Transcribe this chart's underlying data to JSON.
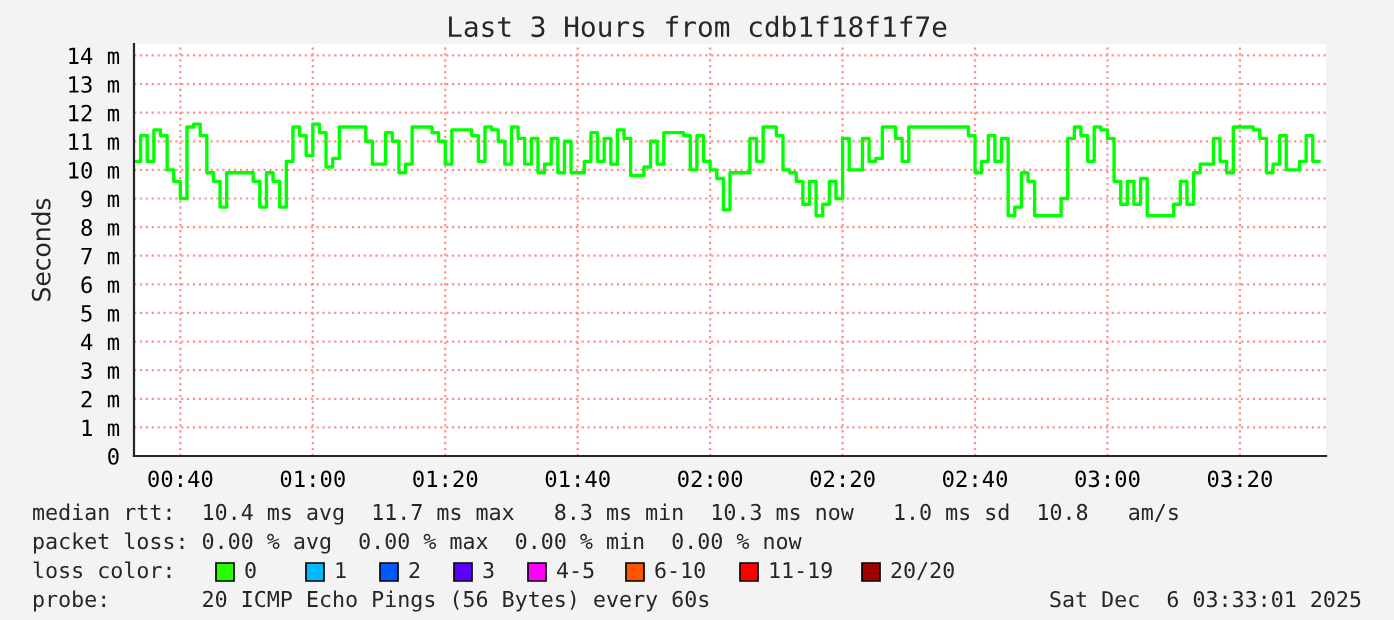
{
  "chart_data": {
    "type": "step",
    "title": "Last 3 Hours from cdb1f18f1f7e",
    "ylabel": "Seconds",
    "xlim": [
      "2025-12-06T00:33",
      "2025-12-06T03:33"
    ],
    "xticks": [
      {
        "value": "2025-12-06T00:40",
        "label": "00:40"
      },
      {
        "value": "2025-12-06T01:00",
        "label": "01:00"
      },
      {
        "value": "2025-12-06T01:20",
        "label": "01:20"
      },
      {
        "value": "2025-12-06T01:40",
        "label": "01:40"
      },
      {
        "value": "2025-12-06T02:00",
        "label": "02:00"
      },
      {
        "value": "2025-12-06T02:20",
        "label": "02:20"
      },
      {
        "value": "2025-12-06T02:40",
        "label": "02:40"
      },
      {
        "value": "2025-12-06T03:00",
        "label": "03:00"
      },
      {
        "value": "2025-12-06T03:20",
        "label": "03:20"
      }
    ],
    "ylim": [
      0,
      14.4
    ],
    "yticks": [
      {
        "value": 0,
        "label": "0"
      },
      {
        "value": 1,
        "label": "1 m"
      },
      {
        "value": 2,
        "label": "2 m"
      },
      {
        "value": 3,
        "label": "3 m"
      },
      {
        "value": 4,
        "label": "4 m"
      },
      {
        "value": 5,
        "label": "5 m"
      },
      {
        "value": 6,
        "label": "6 m"
      },
      {
        "value": 7,
        "label": "7 m"
      },
      {
        "value": 8,
        "label": "8 m"
      },
      {
        "value": 9,
        "label": "9 m"
      },
      {
        "value": 10,
        "label": "10 m"
      },
      {
        "value": 11,
        "label": "11 m"
      },
      {
        "value": 12,
        "label": "12 m"
      },
      {
        "value": 13,
        "label": "13 m"
      },
      {
        "value": 14,
        "label": "14 m"
      }
    ],
    "grid": true,
    "line_style": "solid",
    "marker": "none",
    "series": [
      {
        "color": "#00ff00",
        "x": [
          "2025-12-06T00:33",
          "2025-12-06T00:34",
          "2025-12-06T00:35",
          "2025-12-06T00:36",
          "2025-12-06T00:37",
          "2025-12-06T00:38",
          "2025-12-06T00:39",
          "2025-12-06T00:40",
          "2025-12-06T00:41",
          "2025-12-06T00:42",
          "2025-12-06T00:43",
          "2025-12-06T00:44",
          "2025-12-06T00:45",
          "2025-12-06T00:46",
          "2025-12-06T00:47",
          "2025-12-06T00:51",
          "2025-12-06T00:52",
          "2025-12-06T00:53",
          "2025-12-06T00:54",
          "2025-12-06T00:55",
          "2025-12-06T00:56",
          "2025-12-06T00:57",
          "2025-12-06T00:58",
          "2025-12-06T00:59",
          "2025-12-06T01:00",
          "2025-12-06T01:01",
          "2025-12-06T01:02",
          "2025-12-06T01:03",
          "2025-12-06T01:04",
          "2025-12-06T01:08",
          "2025-12-06T01:09",
          "2025-12-06T01:11",
          "2025-12-06T01:12",
          "2025-12-06T01:13",
          "2025-12-06T01:14",
          "2025-12-06T01:15",
          "2025-12-06T01:18",
          "2025-12-06T01:19",
          "2025-12-06T01:20",
          "2025-12-06T01:21",
          "2025-12-06T01:24",
          "2025-12-06T01:25",
          "2025-12-06T01:26",
          "2025-12-06T01:27",
          "2025-12-06T01:28",
          "2025-12-06T01:29",
          "2025-12-06T01:30",
          "2025-12-06T01:31",
          "2025-12-06T01:32",
          "2025-12-06T01:33",
          "2025-12-06T01:34",
          "2025-12-06T01:35",
          "2025-12-06T01:36",
          "2025-12-06T01:37",
          "2025-12-06T01:38",
          "2025-12-06T01:39",
          "2025-12-06T01:41",
          "2025-12-06T01:42",
          "2025-12-06T01:43",
          "2025-12-06T01:44",
          "2025-12-06T01:45",
          "2025-12-06T01:46",
          "2025-12-06T01:47",
          "2025-12-06T01:48",
          "2025-12-06T01:50",
          "2025-12-06T01:51",
          "2025-12-06T01:52",
          "2025-12-06T01:53",
          "2025-12-06T01:56",
          "2025-12-06T01:57",
          "2025-12-06T01:58",
          "2025-12-06T01:59",
          "2025-12-06T02:00",
          "2025-12-06T02:01",
          "2025-12-06T02:02",
          "2025-12-06T02:03",
          "2025-12-06T02:06",
          "2025-12-06T02:07",
          "2025-12-06T02:08",
          "2025-12-06T02:10",
          "2025-12-06T02:11",
          "2025-12-06T02:12",
          "2025-12-06T02:13",
          "2025-12-06T02:14",
          "2025-12-06T02:15",
          "2025-12-06T02:16",
          "2025-12-06T02:17",
          "2025-12-06T02:18",
          "2025-12-06T02:19",
          "2025-12-06T02:20",
          "2025-12-06T02:21",
          "2025-12-06T02:23",
          "2025-12-06T02:24",
          "2025-12-06T02:25",
          "2025-12-06T02:26",
          "2025-12-06T02:28",
          "2025-12-06T02:29",
          "2025-12-06T02:30",
          "2025-12-06T02:39",
          "2025-12-06T02:40",
          "2025-12-06T02:41",
          "2025-12-06T02:42",
          "2025-12-06T02:43",
          "2025-12-06T02:44",
          "2025-12-06T02:45",
          "2025-12-06T02:46",
          "2025-12-06T02:47",
          "2025-12-06T02:48",
          "2025-12-06T02:49",
          "2025-12-06T02:53",
          "2025-12-06T02:54",
          "2025-12-06T02:55",
          "2025-12-06T02:56",
          "2025-12-06T02:57",
          "2025-12-06T02:58",
          "2025-12-06T02:59",
          "2025-12-06T03:00",
          "2025-12-06T03:01",
          "2025-12-06T03:02",
          "2025-12-06T03:03",
          "2025-12-06T03:04",
          "2025-12-06T03:05",
          "2025-12-06T03:06",
          "2025-12-06T03:10",
          "2025-12-06T03:11",
          "2025-12-06T03:12",
          "2025-12-06T03:13",
          "2025-12-06T03:14",
          "2025-12-06T03:16",
          "2025-12-06T03:17",
          "2025-12-06T03:18",
          "2025-12-06T03:19",
          "2025-12-06T03:22",
          "2025-12-06T03:23",
          "2025-12-06T03:24",
          "2025-12-06T03:25",
          "2025-12-06T03:26",
          "2025-12-06T03:27",
          "2025-12-06T03:29",
          "2025-12-06T03:30",
          "2025-12-06T03:31",
          "2025-12-06T03:32"
        ],
        "values": [
          10.3,
          11.2,
          10.3,
          11.4,
          11.2,
          10.0,
          9.6,
          9.0,
          11.5,
          11.6,
          11.2,
          9.9,
          9.6,
          8.7,
          9.9,
          9.6,
          8.7,
          9.9,
          9.6,
          8.7,
          10.3,
          11.5,
          11.2,
          10.5,
          11.6,
          11.3,
          10.1,
          10.4,
          11.5,
          11.0,
          10.2,
          11.3,
          11.0,
          9.9,
          10.2,
          11.5,
          11.3,
          11.0,
          10.2,
          11.4,
          11.2,
          10.3,
          11.5,
          11.4,
          11.0,
          10.2,
          11.5,
          11.1,
          10.2,
          11.1,
          9.9,
          10.2,
          11.1,
          9.9,
          11.0,
          9.9,
          10.3,
          11.3,
          10.3,
          11.1,
          10.2,
          11.4,
          11.1,
          9.8,
          10.1,
          11.0,
          10.2,
          11.3,
          11.2,
          10.0,
          11.2,
          10.3,
          10.0,
          9.7,
          8.6,
          9.9,
          11.1,
          10.3,
          11.5,
          11.2,
          10.0,
          9.9,
          9.6,
          8.8,
          9.6,
          8.4,
          8.8,
          9.6,
          9.0,
          11.1,
          10.0,
          11.1,
          10.3,
          10.4,
          11.5,
          11.1,
          10.3,
          11.5,
          11.2,
          9.9,
          10.3,
          11.2,
          10.3,
          11.1,
          8.4,
          8.7,
          9.9,
          9.6,
          8.4,
          9.0,
          11.1,
          11.5,
          11.2,
          10.3,
          11.5,
          11.4,
          11.1,
          9.6,
          8.8,
          9.6,
          8.8,
          9.7,
          8.4,
          8.8,
          9.6,
          8.8,
          9.9,
          10.2,
          11.1,
          10.3,
          9.9,
          11.5,
          11.4,
          11.1,
          9.9,
          10.2,
          11.2,
          10.0,
          10.3,
          11.2,
          10.3,
          10.3
        ]
      }
    ],
    "annotations": [
      "median rtt:  10.4 ms avg  11.7 ms max   8.3 ms min  10.3 ms now   1.0 ms sd  10.8   am/s",
      "packet loss: 0.00 % avg  0.00 % max  0.00 % min  0.00 % now",
      "loss color:",
      "0",
      "1",
      "2",
      "3",
      "4-5",
      "6-10",
      "11-19",
      "20/20",
      "probe:       20 ICMP Echo Pings (56 Bytes) every 60s",
      "Sat Dec  6 03:33:01 2025"
    ]
  }
}
